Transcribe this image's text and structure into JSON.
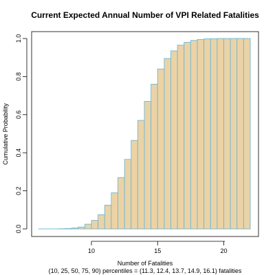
{
  "chart_data": {
    "type": "bar",
    "title": "Current Expected Annual Number of VPI Related Fatalities",
    "xlabel": "Number of Fatalities",
    "ylabel": "Cumulative Probability",
    "caption": "(10, 25, 50, 75, 90) percentiles = (11.3, 12.4, 13.7, 14.9, 16.1) fatalities",
    "xlim": [
      5.5,
      22.5
    ],
    "ylim": [
      0,
      1
    ],
    "xticks": [
      10,
      15,
      20
    ],
    "yticks": [
      0.0,
      0.2,
      0.4,
      0.6,
      0.8,
      1.0
    ],
    "ytick_labels": [
      "0.0",
      "0.2",
      "0.4",
      "0.6",
      "0.8",
      "1.0"
    ],
    "bar_fill": "#EBD3A6",
    "bar_stroke": "#6FB7D2",
    "bins": [
      {
        "x0": 6.0,
        "x1": 6.5,
        "value": 0.0
      },
      {
        "x0": 6.5,
        "x1": 7.0,
        "value": 0.0
      },
      {
        "x0": 7.0,
        "x1": 7.5,
        "value": 0.0
      },
      {
        "x0": 7.5,
        "x1": 8.0,
        "value": 0.001
      },
      {
        "x0": 8.0,
        "x1": 8.5,
        "value": 0.002
      },
      {
        "x0": 8.5,
        "x1": 9.0,
        "value": 0.005
      },
      {
        "x0": 9.0,
        "x1": 9.5,
        "value": 0.01
      },
      {
        "x0": 9.5,
        "x1": 10.0,
        "value": 0.025
      },
      {
        "x0": 10.0,
        "x1": 10.5,
        "value": 0.045
      },
      {
        "x0": 10.5,
        "x1": 11.0,
        "value": 0.075
      },
      {
        "x0": 11.0,
        "x1": 11.5,
        "value": 0.125
      },
      {
        "x0": 11.5,
        "x1": 12.0,
        "value": 0.19
      },
      {
        "x0": 12.0,
        "x1": 12.5,
        "value": 0.27
      },
      {
        "x0": 12.5,
        "x1": 13.0,
        "value": 0.365
      },
      {
        "x0": 13.0,
        "x1": 13.5,
        "value": 0.465
      },
      {
        "x0": 13.5,
        "x1": 14.0,
        "value": 0.57
      },
      {
        "x0": 14.0,
        "x1": 14.5,
        "value": 0.67
      },
      {
        "x0": 14.5,
        "x1": 15.0,
        "value": 0.76
      },
      {
        "x0": 15.0,
        "x1": 15.5,
        "value": 0.84
      },
      {
        "x0": 15.5,
        "x1": 16.0,
        "value": 0.895
      },
      {
        "x0": 16.0,
        "x1": 16.5,
        "value": 0.935
      },
      {
        "x0": 16.5,
        "x1": 17.0,
        "value": 0.965
      },
      {
        "x0": 17.0,
        "x1": 17.5,
        "value": 0.98
      },
      {
        "x0": 17.5,
        "x1": 18.0,
        "value": 0.99
      },
      {
        "x0": 18.0,
        "x1": 18.5,
        "value": 0.995
      },
      {
        "x0": 18.5,
        "x1": 19.0,
        "value": 0.998
      },
      {
        "x0": 19.0,
        "x1": 19.5,
        "value": 0.999
      },
      {
        "x0": 19.5,
        "x1": 20.0,
        "value": 1.0
      },
      {
        "x0": 20.0,
        "x1": 20.5,
        "value": 1.0
      },
      {
        "x0": 20.5,
        "x1": 21.0,
        "value": 1.0
      },
      {
        "x0": 21.0,
        "x1": 21.5,
        "value": 1.0
      },
      {
        "x0": 21.5,
        "x1": 22.0,
        "value": 1.0
      }
    ]
  }
}
